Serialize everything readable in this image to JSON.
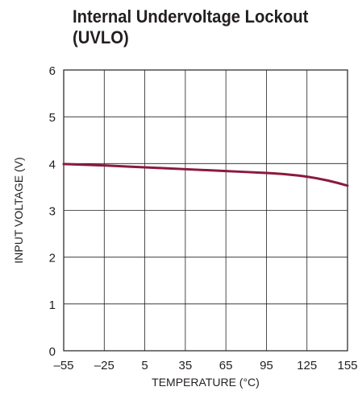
{
  "chart_data": {
    "type": "line",
    "title": [
      "Internal Undervoltage Lockout",
      "(UVLO)"
    ],
    "xlabel": "TEMPERATURE (°C)",
    "ylabel": "INPUT VOLTAGE (V)",
    "xlim": [
      -55,
      155
    ],
    "ylim": [
      0,
      6
    ],
    "xticks": [
      "–55",
      "–25",
      "5",
      "35",
      "65",
      "95",
      "125",
      "155"
    ],
    "xtick_values": [
      -55,
      -25,
      5,
      35,
      65,
      95,
      125,
      155
    ],
    "yticks": [
      "0",
      "1",
      "2",
      "3",
      "4",
      "5",
      "6"
    ],
    "ytick_values": [
      0,
      1,
      2,
      3,
      4,
      5,
      6
    ],
    "grid": true,
    "series": [
      {
        "color": "#8b1a3c",
        "x": [
          -55,
          -25,
          5,
          35,
          65,
          95,
          110,
          125,
          140,
          155
        ],
        "y": [
          3.99,
          3.96,
          3.92,
          3.88,
          3.84,
          3.8,
          3.77,
          3.72,
          3.64,
          3.53
        ]
      }
    ]
  }
}
